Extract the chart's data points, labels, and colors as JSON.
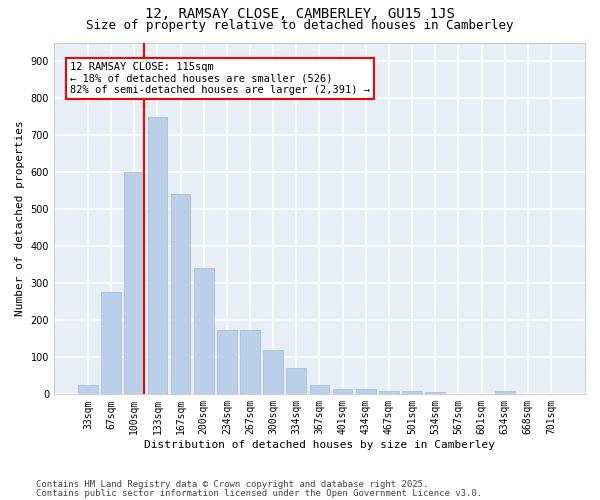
{
  "title1": "12, RAMSAY CLOSE, CAMBERLEY, GU15 1JS",
  "title2": "Size of property relative to detached houses in Camberley",
  "xlabel": "Distribution of detached houses by size in Camberley",
  "ylabel": "Number of detached properties",
  "categories": [
    "33sqm",
    "67sqm",
    "100sqm",
    "133sqm",
    "167sqm",
    "200sqm",
    "234sqm",
    "267sqm",
    "300sqm",
    "334sqm",
    "367sqm",
    "401sqm",
    "434sqm",
    "467sqm",
    "501sqm",
    "534sqm",
    "567sqm",
    "601sqm",
    "634sqm",
    "668sqm",
    "701sqm"
  ],
  "values": [
    25,
    275,
    600,
    750,
    540,
    340,
    175,
    175,
    120,
    70,
    25,
    15,
    15,
    10,
    8,
    5,
    0,
    0,
    8,
    0,
    0
  ],
  "bar_color": "#bad0e8",
  "bar_edge_color": "#a0b8d8",
  "vline_color": "red",
  "annotation_text": "12 RAMSAY CLOSE: 115sqm\n← 18% of detached houses are smaller (526)\n82% of semi-detached houses are larger (2,391) →",
  "annotation_box_color": "white",
  "annotation_box_edge": "red",
  "ylim": [
    0,
    950
  ],
  "yticks": [
    0,
    100,
    200,
    300,
    400,
    500,
    600,
    700,
    800,
    900
  ],
  "bg_color": "#e8eef6",
  "grid_color": "white",
  "footnote1": "Contains HM Land Registry data © Crown copyright and database right 2025.",
  "footnote2": "Contains public sector information licensed under the Open Government Licence v3.0.",
  "title1_fontsize": 10,
  "title2_fontsize": 9,
  "xlabel_fontsize": 8,
  "ylabel_fontsize": 8,
  "tick_fontsize": 7,
  "footnote_fontsize": 6.5,
  "annot_fontsize": 7.5
}
